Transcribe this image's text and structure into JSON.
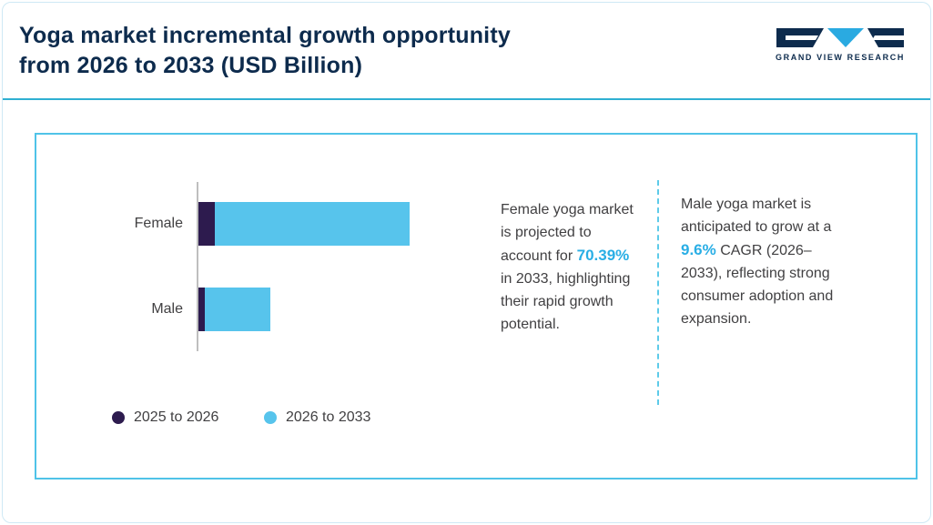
{
  "header": {
    "title_line1": "Yoga market incremental growth opportunity",
    "title_line2": "from 2026 to 2033 (USD Billion)",
    "logo_text": "GRAND VIEW RESEARCH"
  },
  "colors": {
    "navy": "#0d2b4d",
    "purple": "#2d1b4e",
    "light_blue": "#57c4ec",
    "cyan_accent": "#29aee5",
    "card_border": "#4fc3e8",
    "header_rule": "#2fb0d2"
  },
  "chart_data": {
    "type": "bar",
    "orientation": "horizontal",
    "stacked": true,
    "title": "Yoga market incremental growth opportunity from 2026 to 2033 (USD Billion)",
    "categories": [
      "Female",
      "Male"
    ],
    "series": [
      {
        "name": "2025 to 2026",
        "color": "#2d1b4e",
        "values": [
          18,
          7
        ]
      },
      {
        "name": "2026 to 2033",
        "color": "#57c4ec",
        "values": [
          214,
          72
        ]
      }
    ],
    "xlim": [
      0,
      240
    ],
    "value_note": "no axis scale shown; values are relative estimates from bar lengths",
    "legend_position": "bottom",
    "grid": false
  },
  "annotations": {
    "female": {
      "pre": "Female yoga market is projected to account for ",
      "highlight": "70.39%",
      "post": " in 2033, highlighting their rapid growth potential."
    },
    "male": {
      "pre": "Male yoga market is anticipated to grow at a ",
      "highlight": "9.6%",
      "post": " CAGR (2026–2033), reflecting strong consumer adoption and expansion."
    }
  }
}
